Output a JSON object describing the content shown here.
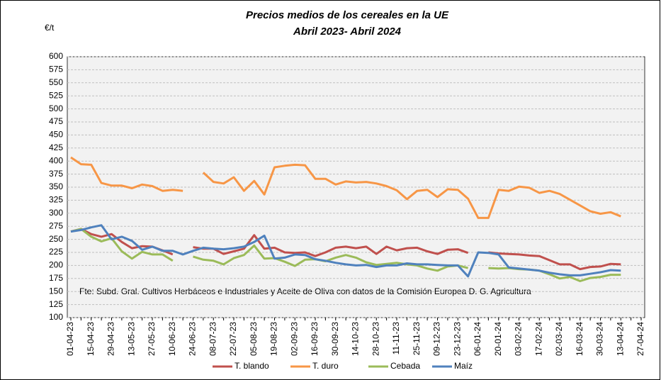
{
  "chart_data": {
    "type": "line",
    "title": "Precios medios de los cereales en la UE",
    "subtitle": "Abril 2023- Abril 2024",
    "y_label": "€/t",
    "annotation": "Fte: Subd. Gral. Cultivos Herbáceos e Industriales y Aceite de Oliva con datos de la Comisión Europea D. G. Agricultura",
    "categories": [
      "01-04-23",
      null,
      "15-04-23",
      null,
      "29-04-23",
      null,
      "13-05-23",
      null,
      "27-05-23",
      null,
      "10-06-23",
      null,
      "24-06-23",
      null,
      "08-07-23",
      null,
      "22-07-23",
      null,
      "05-08-23",
      null,
      "19-08-23",
      null,
      "02-09-23",
      null,
      "16-09-23",
      null,
      "30-09-23",
      null,
      "14-10-23",
      null,
      "28-10-23",
      null,
      "11-11-23",
      null,
      "25-11-23",
      null,
      "09-12-23",
      null,
      "23-12-23",
      null,
      "06-01-24",
      null,
      "20-01-24",
      null,
      "03-02-24",
      null,
      "17-02-24",
      null,
      "02-03-24",
      null,
      "16-03-24",
      null,
      "30-03-24",
      null,
      "13-04-24",
      null,
      "27-04-24"
    ],
    "series": [
      {
        "name": "T. blando",
        "color": "#c0504d",
        "values": [
          265,
          270,
          260,
          255,
          260,
          245,
          233,
          237,
          236,
          229,
          221,
          null,
          235,
          232,
          232,
          222,
          227,
          232,
          258,
          232,
          234,
          225,
          224,
          225,
          218,
          225,
          234,
          236,
          233,
          236,
          222,
          236,
          229,
          233,
          234,
          227,
          222,
          230,
          231,
          224,
          null,
          225,
          223,
          222,
          221,
          219,
          218,
          210,
          202,
          202,
          193,
          197,
          198,
          203,
          202,
          null,
          null
        ]
      },
      {
        "name": "T. duro",
        "color": "#f79646",
        "values": [
          407,
          394,
          393,
          358,
          353,
          353,
          348,
          355,
          352,
          343,
          345,
          343,
          null,
          378,
          360,
          357,
          369,
          343,
          362,
          336,
          388,
          391,
          393,
          392,
          366,
          366,
          355,
          361,
          359,
          360,
          357,
          352,
          344,
          327,
          343,
          345,
          331,
          346,
          345,
          328,
          291,
          291,
          345,
          343,
          351,
          349,
          339,
          343,
          337,
          326,
          315,
          304,
          299,
          302,
          294,
          null,
          null
        ]
      },
      {
        "name": "Cebada",
        "color": "#9bbb59",
        "values": [
          265,
          270,
          255,
          246,
          252,
          227,
          213,
          226,
          221,
          221,
          209,
          null,
          217,
          211,
          209,
          202,
          214,
          220,
          238,
          213,
          214,
          207,
          199,
          211,
          212,
          208,
          215,
          220,
          215,
          206,
          201,
          203,
          205,
          202,
          200,
          194,
          190,
          198,
          200,
          195,
          null,
          195,
          194,
          195,
          193,
          192,
          190,
          183,
          175,
          178,
          170,
          176,
          178,
          182,
          182,
          null,
          null
        ]
      },
      {
        "name": "Maíz",
        "color": "#4f81bd",
        "values": [
          265,
          268,
          273,
          277,
          250,
          255,
          247,
          230,
          236,
          228,
          228,
          221,
          228,
          234,
          232,
          231,
          233,
          236,
          245,
          257,
          213,
          215,
          221,
          220,
          212,
          209,
          205,
          202,
          200,
          201,
          197,
          200,
          200,
          204,
          202,
          202,
          201,
          200,
          200,
          179,
          225,
          224,
          221,
          196,
          194,
          192,
          190,
          186,
          183,
          181,
          181,
          184,
          187,
          191,
          190,
          null,
          null
        ]
      }
    ],
    "ylim": [
      100,
      600
    ],
    "yticks": [
      100,
      125,
      150,
      175,
      200,
      225,
      250,
      275,
      300,
      325,
      350,
      375,
      400,
      425,
      450,
      475,
      500,
      525,
      550,
      575,
      600
    ],
    "grid": true
  }
}
